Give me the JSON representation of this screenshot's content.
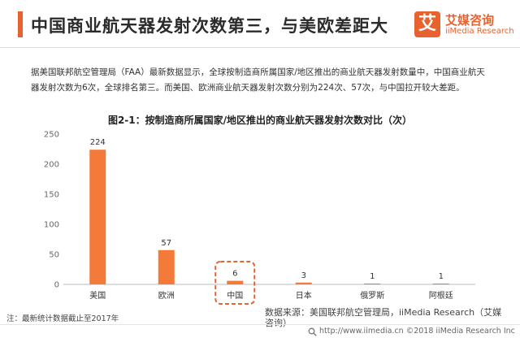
{
  "header": {
    "title": "中国商业航天器发射次数第三，与美欧差距大"
  },
  "logo": {
    "mark": "艾",
    "name_cn": "艾媒咨询",
    "name_en": "iiMedia Research"
  },
  "intro": {
    "text": "据美国联邦航空管理局（FAA）最新数据显示，全球按制造商所属国家/地区推出的商业航天器发射数量中，中国商业航天器发射次数为6次，全球排名第三。而美国、欧洲商业航天器发射次数分别为224次、57次，与中国拉开较大差距。"
  },
  "chart_data": {
    "type": "bar",
    "title": "图2-1：按制造商所属国家/地区推出的商业航天器发射次数对比（次）",
    "categories": [
      "美国",
      "欧洲",
      "中国",
      "日本",
      "俄罗斯",
      "阿根廷"
    ],
    "values": [
      224,
      57,
      6,
      3,
      1,
      1
    ],
    "data_labels": [
      "224",
      "57",
      "6",
      "3",
      "1",
      "1"
    ],
    "ylim": [
      0,
      250
    ],
    "yticks": [
      0,
      50,
      100,
      150,
      200,
      250
    ],
    "ytick_labels": [
      "0",
      "50",
      "100",
      "150",
      "200",
      "250"
    ],
    "highlight_category": "中国",
    "grid": false,
    "colors": {
      "bar": "#f47a3a",
      "highlight_border": "#e8622f",
      "axis": "#bbbbbb"
    }
  },
  "footnote": "注：最新统计数据截止至2017年",
  "source": "数据来源：美国联邦航空管理局，iiMedia Research（艾媒咨询）",
  "footer": "http://www.iimedia.cn    ©2018  iiMedia Research  Inc",
  "footer_icon": "search-icon"
}
